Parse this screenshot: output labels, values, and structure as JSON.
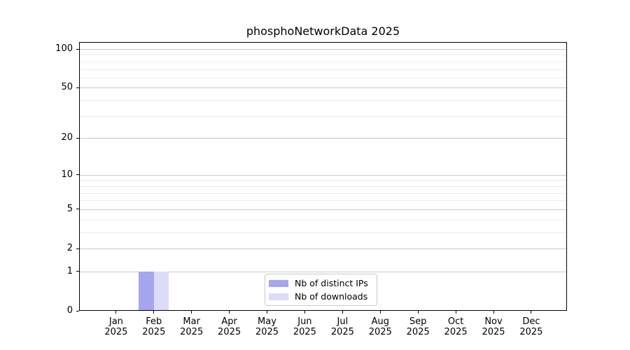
{
  "chart_data": {
    "type": "bar",
    "title": "phosphoNetworkData 2025",
    "x": [
      "Jan 2025",
      "Feb 2025",
      "Mar 2025",
      "Apr 2025",
      "May 2025",
      "Jun 2025",
      "Jul 2025",
      "Aug 2025",
      "Sep 2025",
      "Oct 2025",
      "Nov 2025",
      "Dec 2025"
    ],
    "x_tick_months": [
      "Jan",
      "Feb",
      "Mar",
      "Apr",
      "May",
      "Jun",
      "Jul",
      "Aug",
      "Sep",
      "Oct",
      "Nov",
      "Dec"
    ],
    "x_tick_year": "2025",
    "series": [
      {
        "name": "Nb of distinct IPs",
        "color": "#a5a5f0",
        "values": [
          0,
          1,
          0,
          0,
          0,
          0,
          0,
          0,
          0,
          0,
          0,
          0
        ]
      },
      {
        "name": "Nb of downloads",
        "color": "#dcdcf8",
        "values": [
          0,
          1,
          0,
          0,
          0,
          0,
          0,
          0,
          0,
          0,
          0,
          0
        ]
      }
    ],
    "xlabel": "",
    "ylabel": "",
    "y_scale": "log1p",
    "y_major_ticks": [
      0,
      1,
      2,
      5,
      10,
      20,
      50,
      100
    ],
    "y_minor_gridlines": [
      3,
      4,
      6,
      7,
      8,
      9,
      30,
      40,
      60,
      70,
      80,
      90
    ],
    "ylim": [
      0,
      112
    ],
    "grid": {
      "major_color": "#c9c9c9",
      "minor_color": "#ececec",
      "orientation": "horizontal"
    },
    "legend": {
      "entries": [
        "Nb of distinct IPs",
        "Nb of downloads"
      ],
      "position": "lower center",
      "border_color": "#c9c9c9"
    },
    "axis_color": "#000000",
    "background_color": "#ffffff"
  }
}
